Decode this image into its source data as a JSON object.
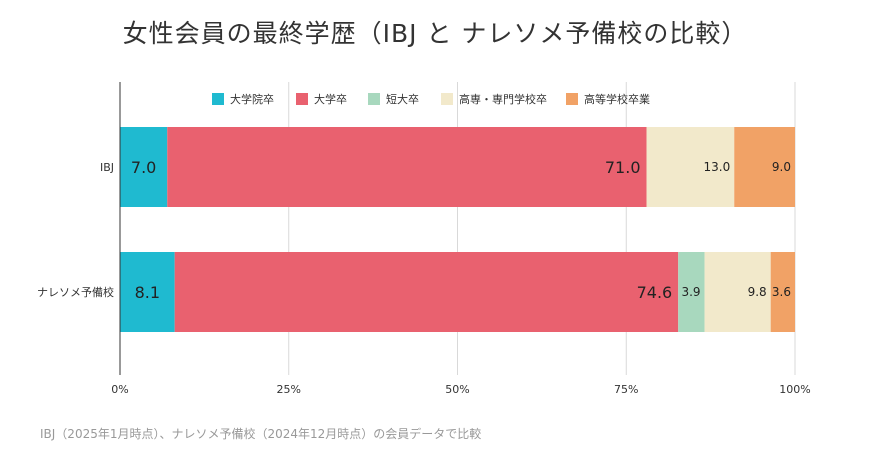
{
  "title": "女性会員の最終学歴（IBJ と ナレソメ予備校の比較）",
  "footnote": "IBJ（2025年1月時点）、ナレソメ予備校（2024年12月時点）の会員データで比較",
  "chart_data": {
    "type": "bar",
    "orientation": "horizontal",
    "stacked": true,
    "categories": [
      "IBJ",
      "ナレソメ予備校"
    ],
    "series": [
      {
        "name": "大学院卒",
        "color": "#1fbad0",
        "values": [
          7.0,
          8.1
        ],
        "labels": [
          "7.0",
          "8.1"
        ]
      },
      {
        "name": "大学卒",
        "color": "#e9616f",
        "values": [
          71.0,
          74.6
        ],
        "labels": [
          "71.0",
          "74.6"
        ]
      },
      {
        "name": "短大卒",
        "color": "#a8d8be",
        "values": [
          0,
          3.9
        ],
        "labels": [
          "",
          "3.9"
        ]
      },
      {
        "name": "高専・専門学校卒",
        "color": "#f2e9cb",
        "values": [
          13.0,
          9.8
        ],
        "labels": [
          "13.0",
          "9.8"
        ]
      },
      {
        "name": "高等学校卒業",
        "color": "#f1a266",
        "values": [
          9.0,
          3.6
        ],
        "labels": [
          "9.0",
          "3.6"
        ]
      }
    ],
    "x_ticks": [
      "0%",
      "25%",
      "50%",
      "75%",
      "100%"
    ],
    "xlim": [
      0,
      100
    ],
    "grid": true,
    "legend_position": "top"
  }
}
